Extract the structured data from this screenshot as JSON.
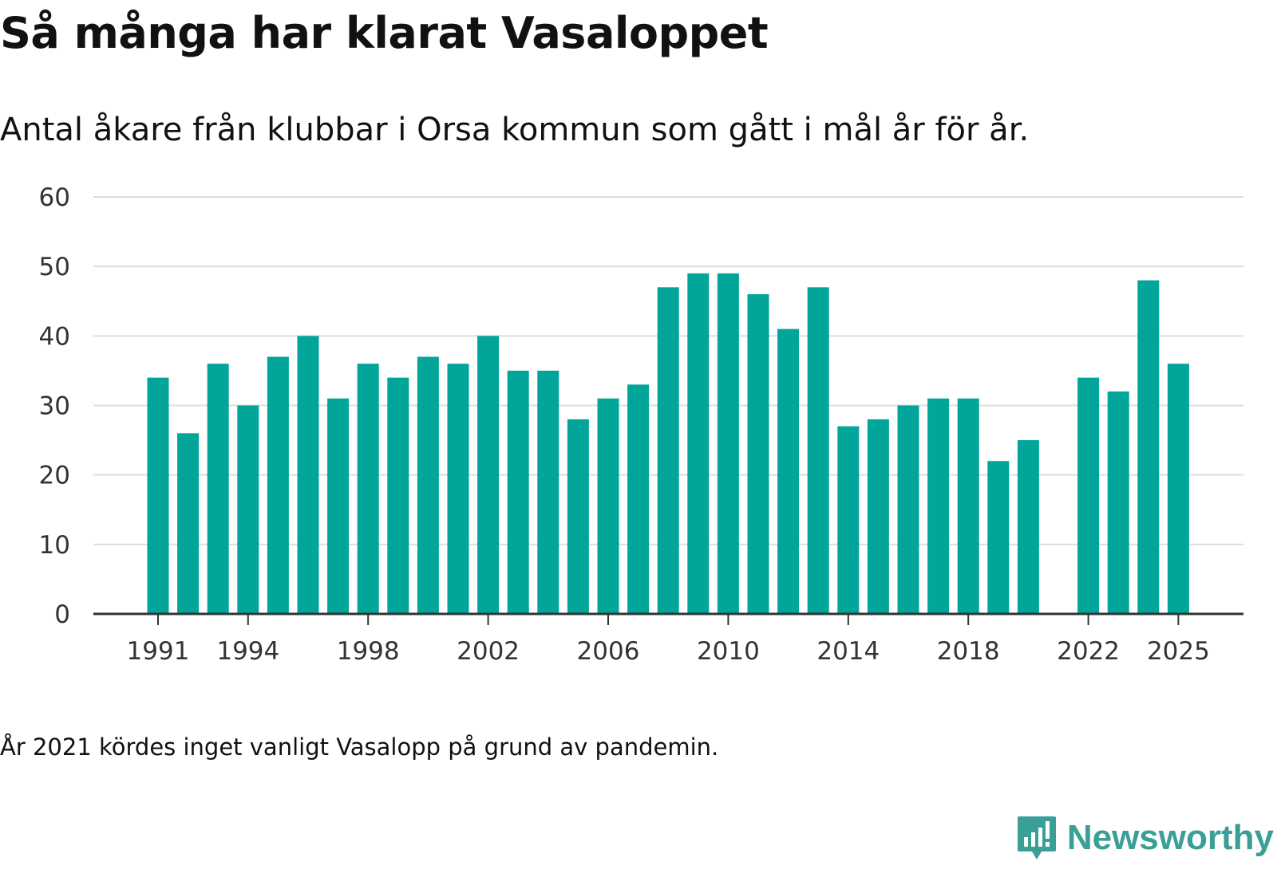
{
  "title": "Så många har klarat Vasaloppet",
  "subtitle": "Antal åkare från klubbar i Orsa kommun som gått i mål år för år.",
  "note": "År 2021 kördes inget vanligt Vasalopp på grund av pandemin.",
  "brand": {
    "name": "Newsworthy",
    "icon": "newsworthy-logo-icon",
    "color": "#3a9f97"
  },
  "colors": {
    "bar": "#02a59a",
    "grid": "#dddddd",
    "axis": "#333333",
    "text": "#333333"
  },
  "chart_data": {
    "type": "bar",
    "title": "Så många har klarat Vasaloppet",
    "xlabel": "",
    "ylabel": "",
    "ylim": [
      0,
      60
    ],
    "yticks": [
      0,
      10,
      20,
      30,
      40,
      50,
      60
    ],
    "xticks": [
      1991,
      1994,
      1998,
      2002,
      2006,
      2010,
      2014,
      2018,
      2022,
      2025
    ],
    "grid": true,
    "legend": "none",
    "years": [
      1991,
      1992,
      1993,
      1994,
      1995,
      1996,
      1997,
      1998,
      1999,
      2000,
      2001,
      2002,
      2003,
      2004,
      2005,
      2006,
      2007,
      2008,
      2009,
      2010,
      2011,
      2012,
      2013,
      2014,
      2015,
      2016,
      2017,
      2018,
      2019,
      2020,
      2021,
      2022,
      2023,
      2024,
      2025
    ],
    "values": [
      34,
      26,
      36,
      30,
      37,
      40,
      31,
      36,
      34,
      37,
      36,
      40,
      35,
      35,
      28,
      31,
      33,
      47,
      49,
      49,
      46,
      41,
      47,
      27,
      28,
      30,
      31,
      31,
      22,
      25,
      null,
      34,
      32,
      48,
      36
    ]
  }
}
